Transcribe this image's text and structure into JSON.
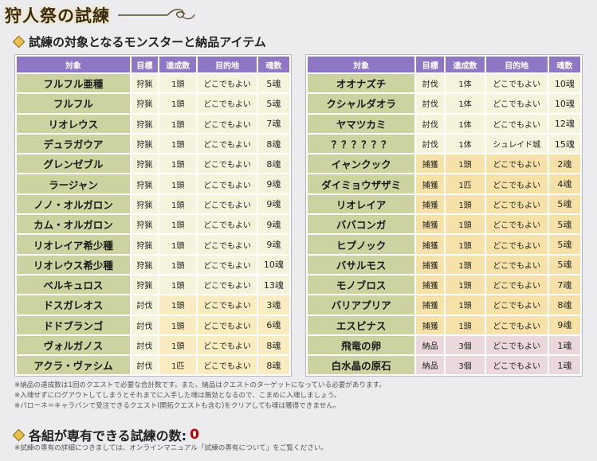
{
  "banner": {
    "title": "狩人祭の試練"
  },
  "section1": {
    "heading": "試練の対象となるモンスターと納品アイテム"
  },
  "table_headers": {
    "target": "対象",
    "method": "目標",
    "count": "達成数",
    "dest": "目的地",
    "souls": "魂数"
  },
  "left_rows": [
    {
      "target": "フルフル亜種",
      "method": "狩猟",
      "count": "1頭",
      "dest": "どこでもよい",
      "souls": "5魂",
      "kind": "r-hunt"
    },
    {
      "target": "フルフル",
      "method": "狩猟",
      "count": "1頭",
      "dest": "どこでもよい",
      "souls": "5魂",
      "kind": "r-hunt"
    },
    {
      "target": "リオレウス",
      "method": "狩猟",
      "count": "1頭",
      "dest": "どこでもよい",
      "souls": "7魂",
      "kind": "r-hunt"
    },
    {
      "target": "デュラガウア",
      "method": "狩猟",
      "count": "1頭",
      "dest": "どこでもよい",
      "souls": "8魂",
      "kind": "r-hunt"
    },
    {
      "target": "グレンゼブル",
      "method": "狩猟",
      "count": "1頭",
      "dest": "どこでもよい",
      "souls": "8魂",
      "kind": "r-hunt"
    },
    {
      "target": "ラージャン",
      "method": "狩猟",
      "count": "1頭",
      "dest": "どこでもよい",
      "souls": "9魂",
      "kind": "r-hunt"
    },
    {
      "target": "ノノ・オルガロン",
      "method": "狩猟",
      "count": "1頭",
      "dest": "どこでもよい",
      "souls": "9魂",
      "kind": "r-hunt"
    },
    {
      "target": "カム・オルガロン",
      "method": "狩猟",
      "count": "1頭",
      "dest": "どこでもよい",
      "souls": "9魂",
      "kind": "r-hunt"
    },
    {
      "target": "リオレイア希少種",
      "method": "狩猟",
      "count": "1頭",
      "dest": "どこでもよい",
      "souls": "9魂",
      "kind": "r-hunt"
    },
    {
      "target": "リオレウス希少種",
      "method": "狩猟",
      "count": "1頭",
      "dest": "どこでもよい",
      "souls": "10魂",
      "kind": "r-hunt"
    },
    {
      "target": "ベルキュロス",
      "method": "狩猟",
      "count": "1頭",
      "dest": "どこでもよい",
      "souls": "13魂",
      "kind": "r-hunt"
    },
    {
      "target": "ドスガレオス",
      "method": "討伐",
      "count": "1頭",
      "dest": "どこでもよい",
      "souls": "3魂",
      "kind": "r-slay"
    },
    {
      "target": "ドドブランゴ",
      "method": "討伐",
      "count": "1頭",
      "dest": "どこでもよい",
      "souls": "6魂",
      "kind": "r-slay"
    },
    {
      "target": "ヴォルガノス",
      "method": "討伐",
      "count": "1頭",
      "dest": "どこでもよい",
      "souls": "8魂",
      "kind": "r-slay"
    },
    {
      "target": "アクラ・ヴァシム",
      "method": "討伐",
      "count": "1匹",
      "dest": "どこでもよい",
      "souls": "8魂",
      "kind": "r-slay"
    }
  ],
  "right_rows": [
    {
      "target": "オオナズチ",
      "method": "討伐",
      "count": "1体",
      "dest": "どこでもよい",
      "souls": "10魂",
      "kind": "r-slay-dim"
    },
    {
      "target": "クシャルダオラ",
      "method": "討伐",
      "count": "1体",
      "dest": "どこでもよい",
      "souls": "10魂",
      "kind": "r-slay-dim"
    },
    {
      "target": "ヤマツカミ",
      "method": "討伐",
      "count": "1体",
      "dest": "どこでもよい",
      "souls": "12魂",
      "kind": "r-slay-dim"
    },
    {
      "target": "？？？？？？",
      "method": "討伐",
      "count": "1体",
      "dest": "シュレイド城",
      "souls": "15魂",
      "kind": "r-slay-dim"
    },
    {
      "target": "イャンクック",
      "method": "捕獲",
      "count": "1頭",
      "dest": "どこでもよい",
      "souls": "2魂",
      "kind": "r-capture"
    },
    {
      "target": "ダイミョウザザミ",
      "method": "捕獲",
      "count": "1匹",
      "dest": "どこでもよい",
      "souls": "4魂",
      "kind": "r-capture"
    },
    {
      "target": "リオレイア",
      "method": "捕獲",
      "count": "1頭",
      "dest": "どこでもよい",
      "souls": "5魂",
      "kind": "r-capture"
    },
    {
      "target": "ババコンガ",
      "method": "捕獲",
      "count": "1頭",
      "dest": "どこでもよい",
      "souls": "5魂",
      "kind": "r-capture"
    },
    {
      "target": "ヒプノック",
      "method": "捕獲",
      "count": "1頭",
      "dest": "どこでもよい",
      "souls": "5魂",
      "kind": "r-capture"
    },
    {
      "target": "バサルモス",
      "method": "捕獲",
      "count": "1頭",
      "dest": "どこでもよい",
      "souls": "5魂",
      "kind": "r-capture"
    },
    {
      "target": "モノブロス",
      "method": "捕獲",
      "count": "1頭",
      "dest": "どこでもよい",
      "souls": "7魂",
      "kind": "r-capture"
    },
    {
      "target": "バリアプリア",
      "method": "捕獲",
      "count": "1頭",
      "dest": "どこでもよい",
      "souls": "8魂",
      "kind": "r-capture"
    },
    {
      "target": "エスピナス",
      "method": "捕獲",
      "count": "1頭",
      "dest": "どこでもよい",
      "souls": "9魂",
      "kind": "r-capture"
    },
    {
      "target": "飛竜の卵",
      "method": "納品",
      "count": "3個",
      "dest": "どこでもよい",
      "souls": "1魂",
      "kind": "r-deliver"
    },
    {
      "target": "白水晶の原石",
      "method": "納品",
      "count": "3個",
      "dest": "どこでもよい",
      "souls": "1魂",
      "kind": "r-deliver"
    }
  ],
  "notes": [
    "※納品の達成数は1回のクエストで必要な合計数です。また、納品はクエストのターゲットになっている必要があります。",
    "※入魂せずにログアウトしてしまうとそれまでに入手した魂は無効となるので、こまめに入魂しましょう。",
    "※パローネ＝キャラバンで受注できるクエスト(開拓クエストも含む)をクリアしても魂は獲得できません。"
  ],
  "section2": {
    "heading": "各組が専有できる試練の数:",
    "count": "0"
  },
  "footnote": "※試練の専有の詳細につきましては、オンラインマニュアル「試練の専有について」をご覧ください。",
  "colors": {
    "header_purple": "#8e77c4",
    "target_green": "#cdd3a0",
    "count_red": "#c00000"
  }
}
